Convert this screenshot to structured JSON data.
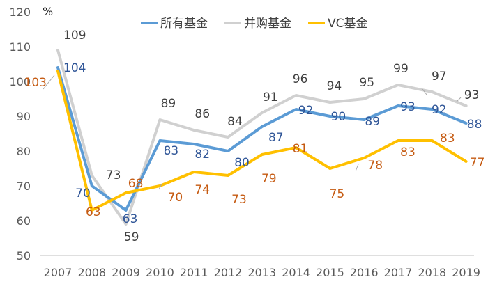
{
  "chart_data": {
    "type": "line",
    "unit_label": "%",
    "categories": [
      "2007",
      "2008",
      "2009",
      "2010",
      "2011",
      "2012",
      "2013",
      "2014",
      "2015",
      "2016",
      "2017",
      "2018",
      "2019"
    ],
    "ylim": [
      50,
      120
    ],
    "yticks": [
      50,
      60,
      70,
      80,
      90,
      100,
      110,
      120
    ],
    "grid": false,
    "legend_position": "top-center",
    "series": [
      {
        "name": "所有基金",
        "color": "#5B9BD5",
        "label_color": "#2F5597",
        "values": [
          104,
          70,
          63,
          83,
          82,
          80,
          87,
          92,
          90,
          89,
          93,
          92,
          88
        ]
      },
      {
        "name": "并购基金",
        "color": "#D0D0D0",
        "label_color": "#404040",
        "values": [
          109,
          73,
          59,
          89,
          86,
          84,
          91,
          96,
          94,
          95,
          99,
          97,
          93
        ]
      },
      {
        "name": "VC基金",
        "color": "#FFC000",
        "label_color": "#C55A11",
        "values": [
          103,
          63,
          68,
          70,
          74,
          73,
          79,
          81,
          75,
          78,
          83,
          83,
          77
        ]
      }
    ]
  }
}
